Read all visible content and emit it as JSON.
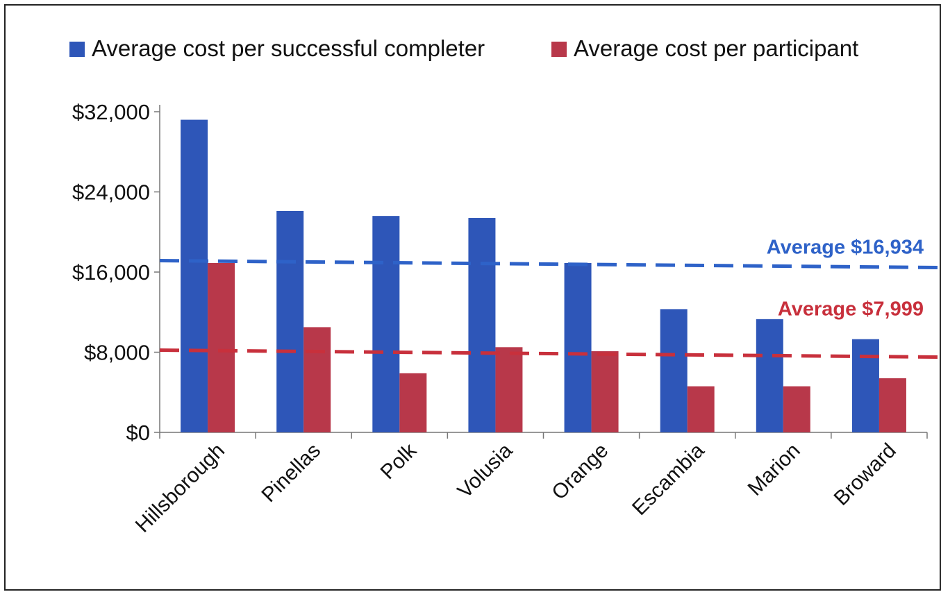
{
  "chart_data": {
    "type": "bar",
    "title": "",
    "xlabel": "",
    "ylabel": "",
    "categories": [
      "Hillsborough",
      "Pinellas",
      "Polk",
      "Volusia",
      "Orange",
      "Escambia",
      "Marion",
      "Broward"
    ],
    "series": [
      {
        "name": "Average cost per successful completer",
        "color": "#2E56B8",
        "values": [
          31200,
          22100,
          21600,
          21400,
          16900,
          12300,
          11300,
          9300
        ]
      },
      {
        "name": "Average cost per participant",
        "color": "#B8384A",
        "values": [
          16900,
          10500,
          5900,
          8500,
          8100,
          4600,
          4600,
          5400
        ]
      }
    ],
    "yticks": [
      {
        "value": 0,
        "label": "$0"
      },
      {
        "value": 8000,
        "label": "$8,000"
      },
      {
        "value": 16000,
        "label": "$16,000"
      },
      {
        "value": 24000,
        "label": "$24,000"
      },
      {
        "value": 32000,
        "label": "$32,000"
      }
    ],
    "ylim": [
      0,
      32000
    ],
    "legend_position": "top",
    "grid": false,
    "reference_lines": [
      {
        "label": "Average $16,934",
        "color": "#2E62C8",
        "value": 16934,
        "style": "dashed"
      },
      {
        "label": "Average $7,999",
        "color": "#C8303C",
        "value": 7999,
        "style": "dashed"
      }
    ]
  }
}
